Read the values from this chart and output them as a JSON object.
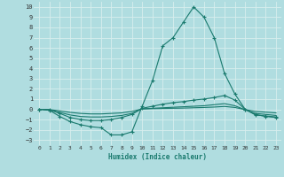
{
  "xlabel": "Humidex (Indice chaleur)",
  "bg_color": "#b0dde0",
  "grid_color": "#d8eeee",
  "line_color": "#1a7a6e",
  "xlim": [
    -0.5,
    23.5
  ],
  "ylim": [
    -3.5,
    10.5
  ],
  "xticks": [
    0,
    1,
    2,
    3,
    4,
    5,
    6,
    7,
    8,
    9,
    10,
    11,
    12,
    13,
    14,
    15,
    16,
    17,
    18,
    19,
    20,
    21,
    22,
    23
  ],
  "yticks": [
    -3,
    -2,
    -1,
    0,
    1,
    2,
    3,
    4,
    5,
    6,
    7,
    8,
    9,
    10
  ],
  "series": [
    {
      "x": [
        0,
        1,
        2,
        3,
        4,
        5,
        6,
        7,
        8,
        9,
        10,
        11,
        12,
        13,
        14,
        15,
        16,
        17,
        18,
        19,
        20,
        21,
        22,
        23
      ],
      "y": [
        0,
        -0.1,
        -0.7,
        -1.2,
        -1.5,
        -1.7,
        -1.8,
        -2.5,
        -2.5,
        -2.2,
        0.3,
        2.8,
        6.2,
        7.0,
        8.5,
        10.0,
        9.0,
        7.0,
        3.5,
        1.5,
        0.0,
        -0.5,
        -0.7,
        -0.8
      ],
      "marker": true
    },
    {
      "x": [
        0,
        1,
        2,
        3,
        4,
        5,
        6,
        7,
        8,
        9,
        10,
        11,
        12,
        13,
        14,
        15,
        16,
        17,
        18,
        19,
        20,
        21,
        22,
        23
      ],
      "y": [
        0,
        -0.05,
        -0.4,
        -0.8,
        -1.0,
        -1.1,
        -1.1,
        -1.0,
        -0.8,
        -0.5,
        0.1,
        0.3,
        0.5,
        0.65,
        0.75,
        0.9,
        1.0,
        1.15,
        1.35,
        0.9,
        0.0,
        -0.55,
        -0.65,
        -0.75
      ],
      "marker": true
    },
    {
      "x": [
        0,
        1,
        2,
        3,
        4,
        5,
        6,
        7,
        8,
        9,
        10,
        11,
        12,
        13,
        14,
        15,
        16,
        17,
        18,
        19,
        20,
        21,
        22,
        23
      ],
      "y": [
        0,
        -0.05,
        -0.3,
        -0.55,
        -0.7,
        -0.75,
        -0.75,
        -0.7,
        -0.6,
        -0.4,
        0.05,
        0.1,
        0.15,
        0.2,
        0.25,
        0.3,
        0.35,
        0.45,
        0.55,
        0.35,
        -0.05,
        -0.4,
        -0.5,
        -0.6
      ],
      "marker": false
    },
    {
      "x": [
        0,
        1,
        2,
        3,
        4,
        5,
        6,
        7,
        8,
        9,
        10,
        11,
        12,
        13,
        14,
        15,
        16,
        17,
        18,
        19,
        20,
        21,
        22,
        23
      ],
      "y": [
        0,
        -0.03,
        -0.15,
        -0.3,
        -0.4,
        -0.45,
        -0.45,
        -0.4,
        -0.35,
        -0.2,
        0.03,
        0.06,
        0.08,
        0.1,
        0.12,
        0.15,
        0.18,
        0.22,
        0.28,
        0.18,
        -0.03,
        -0.2,
        -0.28,
        -0.35
      ],
      "marker": false
    }
  ]
}
